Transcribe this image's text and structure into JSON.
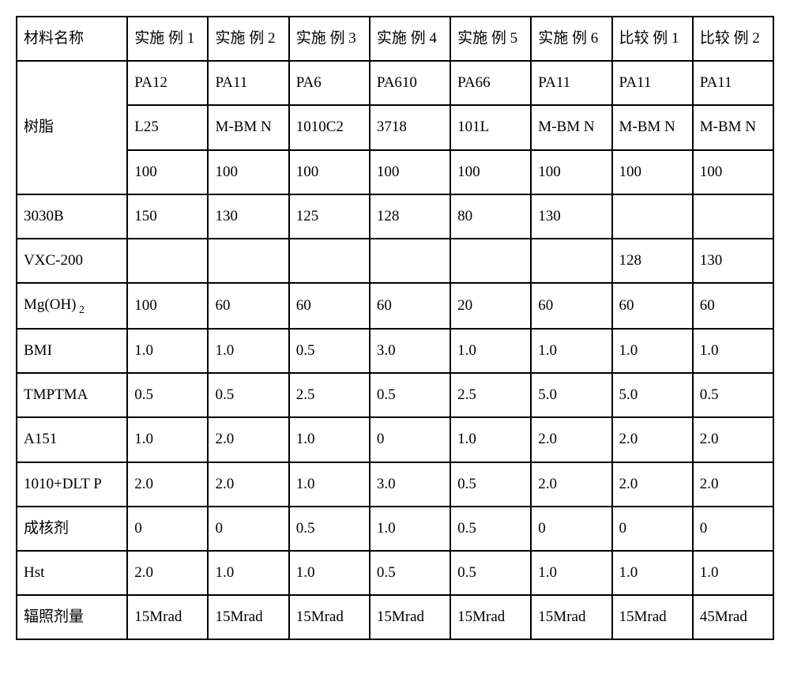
{
  "table": {
    "background_color": "#ffffff",
    "border_color": "#000000",
    "text_color": "#000000",
    "font_size": 19,
    "columns": [
      "材料名称",
      "实施\n例 1",
      "实施\n例 2",
      "实施\n例 3",
      "实施\n例 4",
      "实施\n例 5",
      "实施\n例 6",
      "比较\n例 1",
      "比较\n例 2"
    ],
    "resin_label": "树脂",
    "resin_row1": [
      "PA12",
      "PA11",
      "PA6",
      "PA610",
      "PA66",
      "PA11",
      "PA11",
      "PA11"
    ],
    "resin_row2": [
      "L25",
      "M-BM N",
      "1010C2",
      "3718",
      "101L",
      "M-BM N",
      "M-BM N",
      "M-BM N"
    ],
    "resin_row3": [
      "100",
      "100",
      "100",
      "100",
      "100",
      "100",
      "100",
      "100"
    ],
    "rows": [
      {
        "label": "3030B",
        "cells": [
          "150",
          "130",
          "125",
          "128",
          "80",
          "130",
          "",
          ""
        ]
      },
      {
        "label": "VXC-200",
        "cells": [
          "",
          "",
          "",
          "",
          "",
          "",
          "128",
          "130"
        ]
      },
      {
        "label": "Mg(OH)₂",
        "cells": [
          "100",
          "60",
          "60",
          "60",
          "20",
          "60",
          "60",
          "60"
        ]
      },
      {
        "label": "BMI",
        "cells": [
          "1.0",
          "1.0",
          "0.5",
          "3.0",
          "1.0",
          "1.0",
          "1.0",
          "1.0"
        ]
      },
      {
        "label": "TMPTMA",
        "cells": [
          "0.5",
          "0.5",
          "2.5",
          "0.5",
          "2.5",
          "5.0",
          "5.0",
          "0.5"
        ]
      },
      {
        "label": "A151",
        "cells": [
          "1.0",
          "2.0",
          "1.0",
          "0",
          "1.0",
          "2.0",
          "2.0",
          "2.0"
        ]
      },
      {
        "label": "1010+DLT P",
        "cells": [
          "2.0",
          "2.0",
          "1.0",
          "3.0",
          "0.5",
          "2.0",
          "2.0",
          "2.0"
        ]
      },
      {
        "label": "成核剂",
        "cells": [
          "0",
          "0",
          "0.5",
          "1.0",
          "0.5",
          "0",
          "0",
          "0"
        ]
      },
      {
        "label": "Hst",
        "cells": [
          "2.0",
          "1.0",
          "1.0",
          "0.5",
          "0.5",
          "1.0",
          "1.0",
          "1.0"
        ]
      },
      {
        "label": "辐照剂量",
        "cells": [
          "15Mrad",
          "15Mrad",
          "15Mrad",
          "15Mrad",
          "15Mrad",
          "15Mrad",
          "15Mrad",
          "45Mrad"
        ]
      }
    ]
  }
}
